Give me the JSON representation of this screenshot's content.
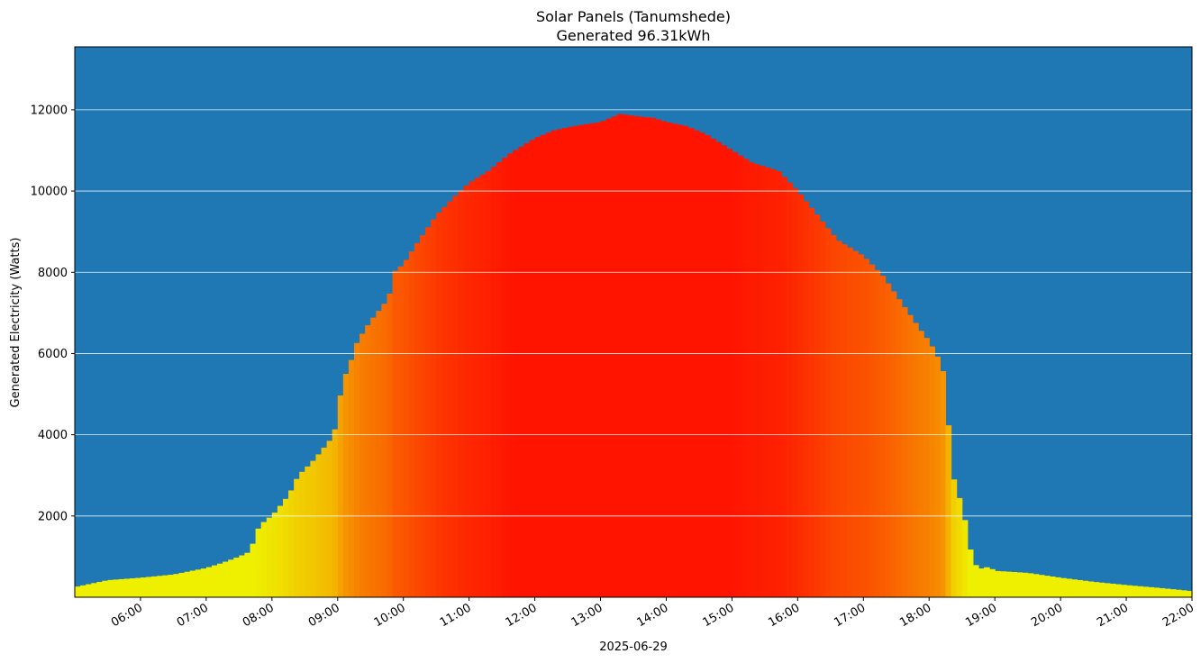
{
  "chart_data": {
    "type": "bar",
    "title": "Solar Panels (Tanumshede)",
    "subtitle": "Generated 96.31kWh",
    "xlabel": "2025-06-29",
    "ylabel": "Generated Electricity (Watts)",
    "x_range_hours": [
      5.0,
      22.0
    ],
    "ylim": [
      0,
      13550
    ],
    "yticks": [
      2000,
      4000,
      6000,
      8000,
      10000,
      12000
    ],
    "xticks": [
      "06:00",
      "07:00",
      "08:00",
      "09:00",
      "10:00",
      "11:00",
      "12:00",
      "13:00",
      "14:00",
      "15:00",
      "16:00",
      "17:00",
      "18:00",
      "19:00",
      "20:00",
      "21:00",
      "22:00"
    ],
    "grid": {
      "y": true,
      "x": false
    },
    "colors": {
      "background": "#1f77b4",
      "grid": "#ffffff",
      "low": "#eef000",
      "mid": "#f5a000",
      "high": "#ff1400"
    },
    "profile_hours": [
      5.0,
      5.5,
      6.0,
      6.5,
      7.0,
      7.25,
      7.5,
      7.7,
      7.72,
      7.9,
      8.0,
      8.2,
      8.3,
      8.4,
      8.5,
      8.65,
      8.8,
      8.95,
      9.0,
      9.05,
      9.1,
      9.2,
      9.3,
      9.5,
      9.7,
      9.8,
      9.85,
      10.0,
      10.2,
      10.5,
      10.8,
      11.0,
      11.3,
      11.6,
      12.0,
      12.3,
      12.6,
      13.0,
      13.3,
      13.5,
      13.8,
      14.0,
      14.3,
      14.6,
      15.0,
      15.3,
      15.7,
      16.0,
      16.3,
      16.6,
      17.0,
      17.3,
      17.6,
      17.9,
      18.0,
      18.2,
      18.3,
      18.4,
      18.5,
      18.55,
      18.6,
      18.7,
      18.8,
      18.9,
      19.0,
      19.5,
      20.0,
      20.5,
      21.0,
      21.5,
      22.0
    ],
    "profile_watts": [
      250,
      420,
      480,
      560,
      720,
      850,
      1000,
      1150,
      1550,
      1900,
      2000,
      2400,
      2650,
      3000,
      3150,
      3400,
      3700,
      4000,
      4800,
      5000,
      5400,
      5800,
      6300,
      6800,
      7200,
      7500,
      8000,
      8200,
      8700,
      9400,
      9900,
      10200,
      10500,
      10900,
      11300,
      11500,
      11600,
      11700,
      11900,
      11850,
      11800,
      11700,
      11600,
      11400,
      11000,
      10700,
      10500,
      10000,
      9400,
      8800,
      8400,
      7900,
      7200,
      6500,
      6300,
      5700,
      4100,
      2500,
      2400,
      1800,
      1300,
      800,
      700,
      750,
      650,
      600,
      480,
      380,
      300,
      230,
      150
    ]
  }
}
